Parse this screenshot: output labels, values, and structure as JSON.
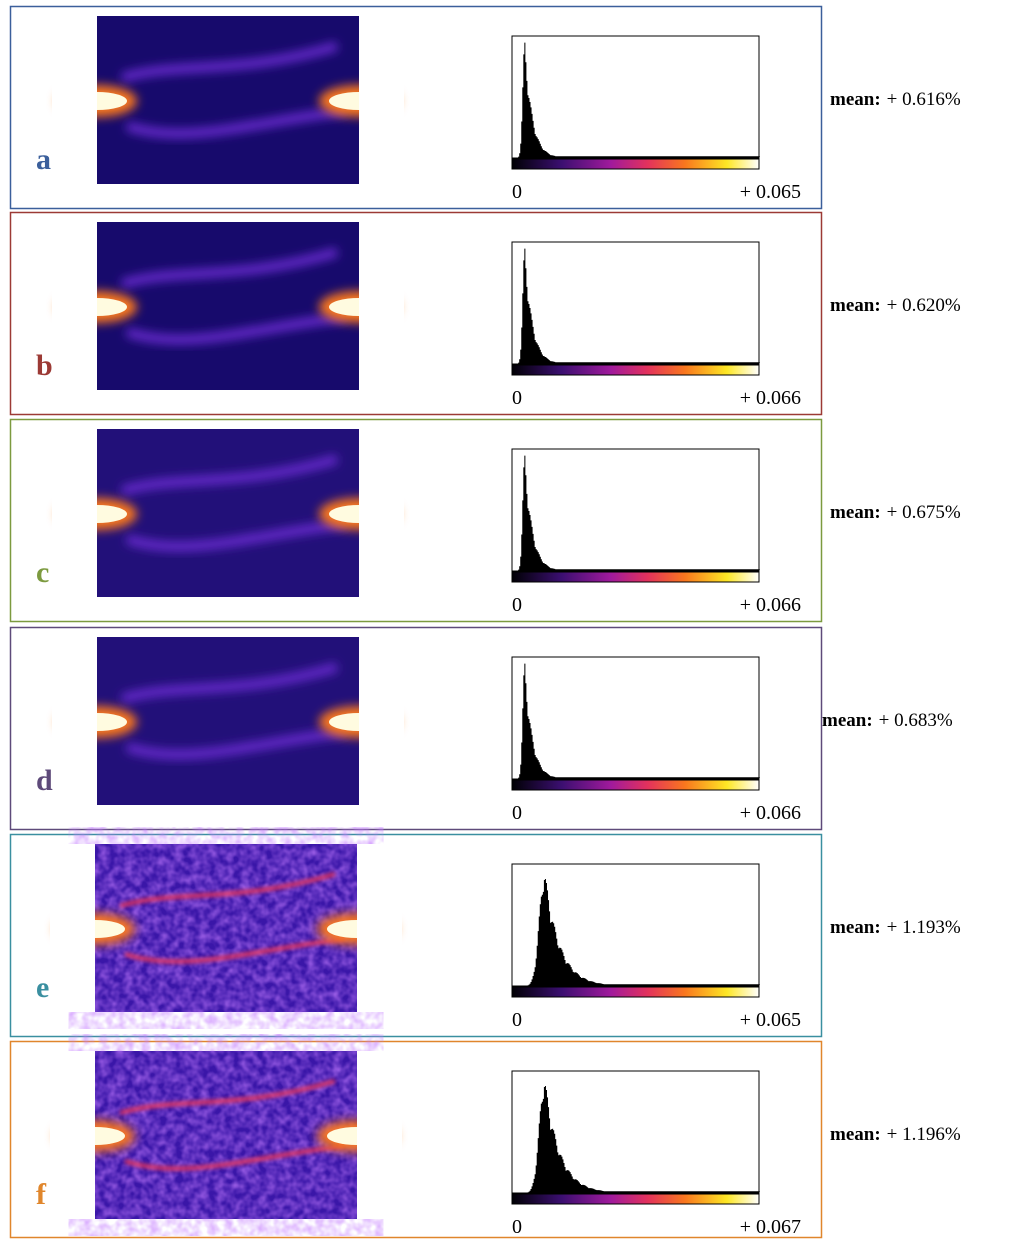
{
  "panels": [
    {
      "label": "a",
      "color": "#3b5f9b",
      "mean_label": "mean:",
      "mean": "+ 0.616%",
      "cbar_min": "0",
      "cbar_max": "+ 0.065"
    },
    {
      "label": "b",
      "color": "#9c3a35",
      "mean_label": "mean:",
      "mean": "+ 0.620%",
      "cbar_min": "0",
      "cbar_max": "+ 0.066"
    },
    {
      "label": "c",
      "color": "#7c9a3f",
      "mean_label": "mean:",
      "mean": "+ 0.675%",
      "cbar_min": "0",
      "cbar_max": "+ 0.066"
    },
    {
      "label": "d",
      "color": "#5e4a7a",
      "mean_label": "mean:",
      "mean": "+ 0.683%",
      "cbar_min": "0",
      "cbar_max": "+ 0.066"
    },
    {
      "label": "e",
      "color": "#3a8fa0",
      "mean_label": "mean:",
      "mean": "+ 1.193%",
      "cbar_min": "0",
      "cbar_max": "+ 0.065"
    },
    {
      "label": "f",
      "color": "#e0862c",
      "mean_label": "mean:",
      "mean": "+ 1.196%",
      "cbar_min": "0",
      "cbar_max": "+ 0.067"
    }
  ]
}
